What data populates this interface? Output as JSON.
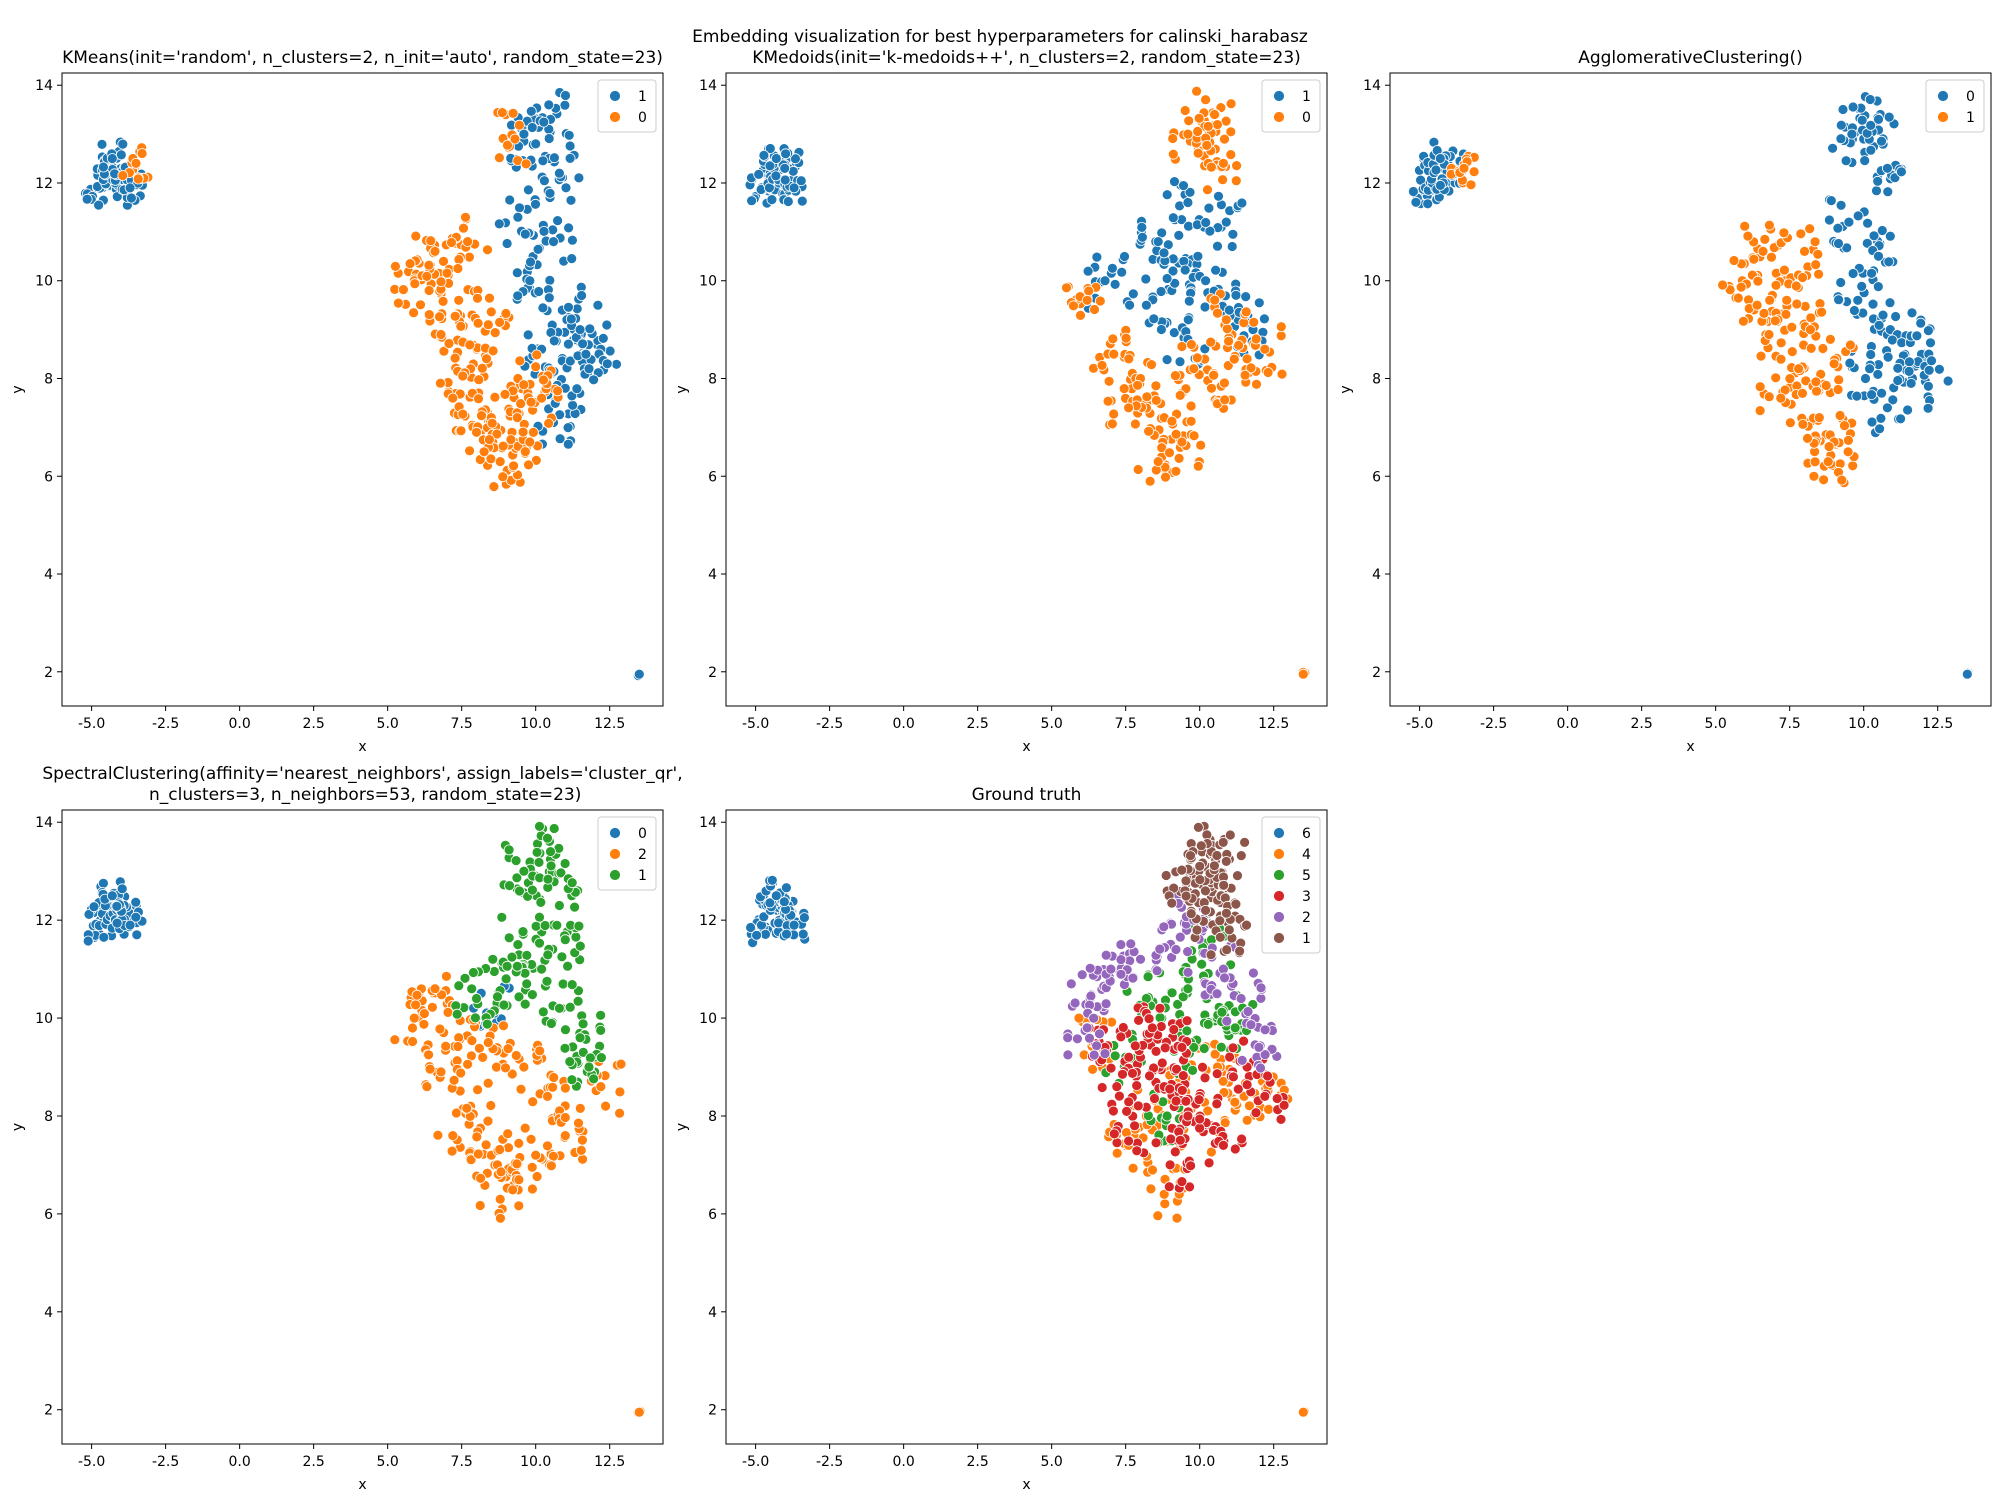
{
  "figure_title": "Embedding visualization for best hyperparameters for calinski_harabasz",
  "palette": {
    "blue": "#1f77b4",
    "orange": "#ff7f0e",
    "green": "#2ca02c",
    "red": "#d62728",
    "purple": "#9467bd",
    "brown": "#8c564b"
  },
  "chart_data": [
    {
      "type": "scatter",
      "title": "KMeans(init='random', n_clusters=2, n_init='auto', random_state=23)",
      "xlabel": "x",
      "ylabel": "y",
      "xlim": [
        -6.0,
        14.3
      ],
      "ylim": [
        1.3,
        14.25
      ],
      "xticks": [
        "-5.0",
        "-2.5",
        "0.0",
        "2.5",
        "5.0",
        "7.5",
        "10.0",
        "12.5"
      ],
      "yticks": [
        "2",
        "4",
        "6",
        "8",
        "10",
        "12",
        "14"
      ],
      "grid": false,
      "legend_position": "top-right",
      "legend": [
        {
          "label": "1",
          "color": "#1f77b4"
        },
        {
          "label": "0",
          "color": "#ff7f0e"
        }
      ],
      "series": [
        {
          "name": "1",
          "color": "#1f77b4",
          "points": [
            [
              -4.8,
              11.9
            ],
            [
              -4.5,
              12.2
            ],
            [
              -4.2,
              12.0
            ],
            [
              -3.9,
              12.3
            ],
            [
              -3.7,
              11.9
            ],
            [
              -4.3,
              12.5
            ],
            [
              10.0,
              12.8
            ],
            [
              10.5,
              13.3
            ],
            [
              9.6,
              13.0
            ],
            [
              10.8,
              12.2
            ],
            [
              9.4,
              11.3
            ],
            [
              10.6,
              10.8
            ],
            [
              9.8,
              10.0
            ],
            [
              10.9,
              9.4
            ],
            [
              11.5,
              9.0
            ],
            [
              12.2,
              8.6
            ],
            [
              10.2,
              8.6
            ],
            [
              11.0,
              7.8
            ],
            [
              10.6,
              7.1
            ],
            [
              11.8,
              8.2
            ],
            [
              13.5,
              1.95
            ]
          ]
        },
        {
          "name": "0",
          "color": "#ff7f0e",
          "points": [
            [
              -3.5,
              12.4
            ],
            [
              5.9,
              10.0
            ],
            [
              6.6,
              10.6
            ],
            [
              7.4,
              9.6
            ],
            [
              6.8,
              8.9
            ],
            [
              7.8,
              8.2
            ],
            [
              7.2,
              7.6
            ],
            [
              8.5,
              7.2
            ],
            [
              9.2,
              6.9
            ],
            [
              8.8,
              6.3
            ],
            [
              8.4,
              9.1
            ],
            [
              9.4,
              8.0
            ],
            [
              10.2,
              7.6
            ],
            [
              6.4,
              9.8
            ],
            [
              7.7,
              10.8
            ],
            [
              9.3,
              12.9
            ],
            [
              8.0,
              6.9
            ],
            [
              9.8,
              6.7
            ]
          ]
        }
      ]
    },
    {
      "type": "scatter",
      "title": "KMedoids(init='k-medoids++', n_clusters=2, random_state=23)",
      "xlabel": "x",
      "ylabel": "y",
      "xlim": [
        -6.0,
        14.3
      ],
      "ylim": [
        1.3,
        14.25
      ],
      "xticks": [
        "-5.0",
        "-2.5",
        "0.0",
        "2.5",
        "5.0",
        "7.5",
        "10.0",
        "12.5"
      ],
      "yticks": [
        "2",
        "4",
        "6",
        "8",
        "10",
        "12",
        "14"
      ],
      "grid": false,
      "legend_position": "top-right",
      "legend": [
        {
          "label": "1",
          "color": "#1f77b4"
        },
        {
          "label": "0",
          "color": "#ff7f0e"
        }
      ],
      "series": [
        {
          "name": "1",
          "color": "#1f77b4",
          "points": [
            [
              -4.8,
              11.9
            ],
            [
              -4.5,
              12.2
            ],
            [
              -4.2,
              12.0
            ],
            [
              -3.9,
              12.3
            ],
            [
              -3.7,
              11.9
            ],
            [
              -4.3,
              12.5
            ],
            [
              9.6,
              11.6
            ],
            [
              8.6,
              10.8
            ],
            [
              9.1,
              10.2
            ],
            [
              10.2,
              10.0
            ],
            [
              11.0,
              9.4
            ],
            [
              8.2,
              9.5
            ],
            [
              6.8,
              10.0
            ],
            [
              11.8,
              9.0
            ],
            [
              9.6,
              8.8
            ],
            [
              10.9,
              11.2
            ]
          ]
        },
        {
          "name": "0",
          "color": "#ff7f0e",
          "points": [
            [
              10.0,
              12.9
            ],
            [
              10.5,
              13.4
            ],
            [
              9.6,
              13.0
            ],
            [
              10.8,
              12.4
            ],
            [
              6.2,
              9.6
            ],
            [
              7.1,
              8.5
            ],
            [
              8.0,
              8.0
            ],
            [
              8.8,
              7.2
            ],
            [
              9.4,
              6.7
            ],
            [
              8.6,
              6.3
            ],
            [
              10.4,
              7.8
            ],
            [
              11.6,
              8.4
            ],
            [
              12.2,
              8.6
            ],
            [
              9.8,
              8.2
            ],
            [
              7.6,
              7.4
            ],
            [
              10.9,
              9.2
            ],
            [
              13.5,
              1.95
            ]
          ]
        }
      ]
    },
    {
      "type": "scatter",
      "title": "AgglomerativeClustering()",
      "xlabel": "x",
      "ylabel": "y",
      "xlim": [
        -6.0,
        14.3
      ],
      "ylim": [
        1.3,
        14.25
      ],
      "xticks": [
        "-5.0",
        "-2.5",
        "0.0",
        "2.5",
        "5.0",
        "7.5",
        "10.0",
        "12.5"
      ],
      "yticks": [
        "2",
        "4",
        "6",
        "8",
        "10",
        "12",
        "14"
      ],
      "grid": false,
      "legend_position": "top-right",
      "legend": [
        {
          "label": "0",
          "color": "#1f77b4"
        },
        {
          "label": "1",
          "color": "#ff7f0e"
        }
      ],
      "series": [
        {
          "name": "0",
          "color": "#1f77b4",
          "points": [
            [
              -4.8,
              11.9
            ],
            [
              -4.5,
              12.2
            ],
            [
              -4.2,
              12.0
            ],
            [
              -3.9,
              12.3
            ],
            [
              -4.3,
              12.5
            ],
            [
              10.0,
              12.9
            ],
            [
              10.5,
              13.3
            ],
            [
              9.6,
              13.0
            ],
            [
              10.8,
              12.3
            ],
            [
              9.5,
              11.2
            ],
            [
              10.5,
              10.5
            ],
            [
              9.8,
              9.6
            ],
            [
              10.9,
              9.0
            ],
            [
              11.6,
              8.8
            ],
            [
              12.2,
              8.5
            ],
            [
              10.2,
              8.2
            ],
            [
              10.8,
              7.4
            ],
            [
              11.6,
              7.9
            ],
            [
              13.5,
              1.95
            ]
          ]
        },
        {
          "name": "1",
          "color": "#ff7f0e",
          "points": [
            [
              -3.5,
              12.3
            ],
            [
              5.9,
              10.0
            ],
            [
              6.6,
              10.6
            ],
            [
              7.4,
              9.6
            ],
            [
              6.8,
              8.9
            ],
            [
              7.8,
              8.2
            ],
            [
              7.2,
              7.6
            ],
            [
              8.5,
              7.2
            ],
            [
              9.0,
              6.7
            ],
            [
              8.8,
              6.3
            ],
            [
              8.2,
              9.0
            ],
            [
              9.0,
              8.3
            ],
            [
              8.0,
              10.6
            ],
            [
              6.4,
              9.5
            ]
          ]
        }
      ]
    },
    {
      "type": "scatter",
      "title": "SpectralClustering(affinity='nearest_neighbors', assign_labels='cluster_qr',\n n_clusters=3, n_neighbors=53, random_state=23)",
      "xlabel": "x",
      "ylabel": "y",
      "xlim": [
        -6.0,
        14.3
      ],
      "ylim": [
        1.3,
        14.25
      ],
      "xticks": [
        "-5.0",
        "-2.5",
        "0.0",
        "2.5",
        "5.0",
        "7.5",
        "10.0",
        "12.5"
      ],
      "yticks": [
        "2",
        "4",
        "6",
        "8",
        "10",
        "12",
        "14"
      ],
      "grid": false,
      "legend_position": "top-right",
      "legend": [
        {
          "label": "0",
          "color": "#1f77b4"
        },
        {
          "label": "2",
          "color": "#ff7f0e"
        },
        {
          "label": "1",
          "color": "#2ca02c"
        }
      ],
      "series": [
        {
          "name": "0",
          "color": "#1f77b4",
          "points": [
            [
              -4.8,
              11.9
            ],
            [
              -4.5,
              12.2
            ],
            [
              -4.2,
              12.0
            ],
            [
              -3.9,
              12.3
            ],
            [
              -3.7,
              11.9
            ],
            [
              -4.3,
              12.5
            ],
            [
              8.6,
              10.1
            ]
          ]
        },
        {
          "name": "2",
          "color": "#ff7f0e",
          "points": [
            [
              5.9,
              10.0
            ],
            [
              6.6,
              10.6
            ],
            [
              7.4,
              9.6
            ],
            [
              6.8,
              8.9
            ],
            [
              7.8,
              8.2
            ],
            [
              7.2,
              7.6
            ],
            [
              8.5,
              7.2
            ],
            [
              9.2,
              6.9
            ],
            [
              8.8,
              6.3
            ],
            [
              9.6,
              9.0
            ],
            [
              10.4,
              8.4
            ],
            [
              11.0,
              7.6
            ],
            [
              12.2,
              8.6
            ],
            [
              8.4,
              9.5
            ],
            [
              10.0,
              7.2
            ],
            [
              13.5,
              1.95
            ]
          ]
        },
        {
          "name": "1",
          "color": "#2ca02c",
          "points": [
            [
              10.0,
              12.9
            ],
            [
              10.5,
              13.4
            ],
            [
              9.6,
              13.0
            ],
            [
              10.8,
              12.3
            ],
            [
              9.4,
              11.5
            ],
            [
              10.2,
              11.0
            ],
            [
              9.0,
              10.8
            ],
            [
              10.8,
              10.2
            ],
            [
              11.5,
              9.6
            ],
            [
              11.8,
              9.0
            ],
            [
              8.0,
              10.4
            ],
            [
              11.0,
              11.6
            ]
          ]
        }
      ]
    },
    {
      "type": "scatter",
      "title": "Ground truth",
      "xlabel": "x",
      "ylabel": "y",
      "xlim": [
        -6.0,
        14.3
      ],
      "ylim": [
        1.3,
        14.25
      ],
      "xticks": [
        "-5.0",
        "-2.5",
        "0.0",
        "2.5",
        "5.0",
        "7.5",
        "10.0",
        "12.5"
      ],
      "yticks": [
        "2",
        "4",
        "6",
        "8",
        "10",
        "12",
        "14"
      ],
      "grid": false,
      "legend_position": "top-right",
      "legend": [
        {
          "label": "6",
          "color": "#1f77b4"
        },
        {
          "label": "4",
          "color": "#ff7f0e"
        },
        {
          "label": "5",
          "color": "#2ca02c"
        },
        {
          "label": "3",
          "color": "#d62728"
        },
        {
          "label": "2",
          "color": "#9467bd"
        },
        {
          "label": "1",
          "color": "#8c564b"
        }
      ],
      "series": [
        {
          "name": "6",
          "color": "#1f77b4",
          "points": [
            [
              -4.8,
              11.9
            ],
            [
              -4.5,
              12.2
            ],
            [
              -4.2,
              12.0
            ],
            [
              -3.9,
              12.3
            ],
            [
              -3.7,
              11.9
            ],
            [
              -4.3,
              12.5
            ]
          ]
        },
        {
          "name": "4",
          "color": "#ff7f0e",
          "points": [
            [
              6.4,
              9.5
            ],
            [
              7.6,
              7.4
            ],
            [
              8.8,
              6.4
            ],
            [
              10.0,
              7.8
            ],
            [
              11.5,
              8.4
            ],
            [
              12.3,
              8.6
            ],
            [
              9.2,
              8.6
            ],
            [
              8.2,
              8.0
            ],
            [
              10.6,
              9.0
            ],
            [
              13.5,
              1.95
            ]
          ]
        },
        {
          "name": "5",
          "color": "#2ca02c",
          "points": [
            [
              8.2,
              10.4
            ],
            [
              9.6,
              10.6
            ],
            [
              10.8,
              10.0
            ],
            [
              7.5,
              9.2
            ],
            [
              9.8,
              9.4
            ],
            [
              10.4,
              11.6
            ],
            [
              11.2,
              9.8
            ],
            [
              8.9,
              8.0
            ]
          ]
        },
        {
          "name": "3",
          "color": "#d62728",
          "points": [
            [
              7.2,
              8.6
            ],
            [
              8.0,
              9.2
            ],
            [
              8.8,
              8.6
            ],
            [
              9.4,
              9.4
            ],
            [
              7.8,
              7.8
            ],
            [
              9.0,
              7.0
            ],
            [
              10.0,
              8.4
            ],
            [
              10.8,
              7.4
            ],
            [
              11.6,
              9.0
            ],
            [
              6.8,
              9.4
            ],
            [
              8.4,
              9.8
            ],
            [
              9.6,
              8.0
            ],
            [
              12.2,
              8.4
            ]
          ]
        },
        {
          "name": "2",
          "color": "#9467bd",
          "points": [
            [
              6.3,
              10.4
            ],
            [
              7.0,
              11.0
            ],
            [
              8.0,
              11.2
            ],
            [
              9.2,
              11.4
            ],
            [
              10.8,
              11.0
            ],
            [
              11.4,
              10.4
            ],
            [
              12.0,
              9.4
            ],
            [
              6.2,
              9.8
            ],
            [
              9.8,
              12.0
            ]
          ]
        },
        {
          "name": "1",
          "color": "#8c564b",
          "points": [
            [
              9.8,
              12.9
            ],
            [
              10.4,
              13.4
            ],
            [
              10.0,
              13.1
            ],
            [
              10.7,
              12.5
            ],
            [
              9.5,
              12.6
            ],
            [
              10.9,
              13.2
            ],
            [
              10.2,
              12.2
            ],
            [
              11.0,
              11.8
            ]
          ]
        }
      ]
    }
  ]
}
